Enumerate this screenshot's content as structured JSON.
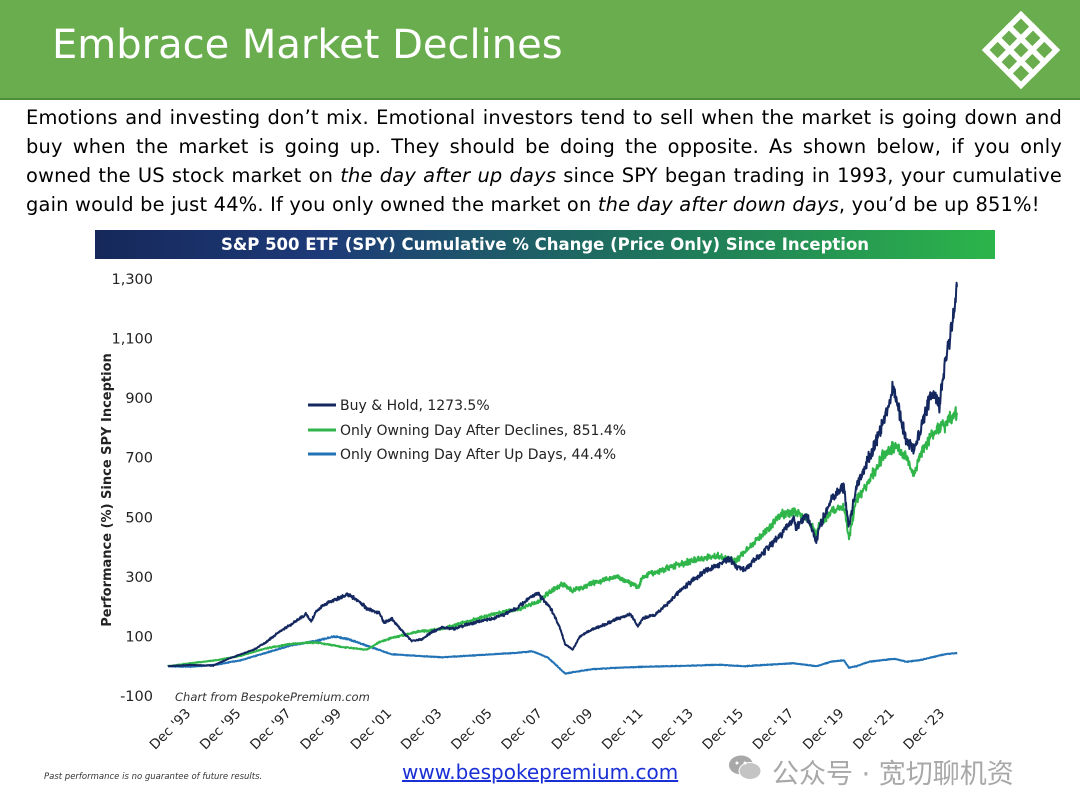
{
  "header": {
    "title": "Embrace Market Declines",
    "background_color": "#6aad4e",
    "logo_icon": "bespoke-lattice-logo-icon"
  },
  "intro": {
    "part1": "Emotions and investing don’t mix.  Emotional investors tend to sell when the market is going down and buy when the market is going up.  They should be doing the opposite.  As shown below, if you only owned the US stock market on ",
    "em1": "the day after up days",
    "part2": " since SPY began trading in 1993, your cumulative gain would be just 44%.  If you only owned the market on ",
    "em2": "the day after down days",
    "part3": ", you’d be up 851%!"
  },
  "chart_data": {
    "type": "line",
    "title": "S&P 500 ETF (SPY) Cumulative % Change (Price Only) Since Inception",
    "ylabel": "Performance (%) Since SPY Inception",
    "xlabel": "",
    "ylim": [
      -100,
      1300
    ],
    "yticks": [
      -100,
      100,
      300,
      500,
      700,
      900,
      1100,
      1300
    ],
    "ytick_labels": [
      "-100",
      "100",
      "300",
      "500",
      "700",
      "900",
      "1,100",
      "1,300"
    ],
    "xlim": [
      1993.1,
      2024.5
    ],
    "xticks": [
      1993.95,
      1995.95,
      1997.95,
      1999.95,
      2001.95,
      2003.95,
      2005.95,
      2007.95,
      2009.95,
      2011.95,
      2013.95,
      2015.95,
      2017.95,
      2019.95,
      2021.95,
      2023.95
    ],
    "xtick_labels": [
      "Dec '93",
      "Dec '95",
      "Dec '97",
      "Dec '99",
      "Dec '01",
      "Dec '03",
      "Dec '05",
      "Dec '07",
      "Dec '09",
      "Dec '11",
      "Dec '13",
      "Dec '15",
      "Dec '17",
      "Dec '19",
      "Dec '21",
      "Dec '23"
    ],
    "grid": false,
    "legend_position": "upper-left",
    "credit": "Chart from BespokePremium.com",
    "series": [
      {
        "name": "Buy & Hold, 1273.5%",
        "color": "#14285f",
        "x": [
          1993.1,
          1994.0,
          1994.9,
          1995.5,
          1996.0,
          1996.5,
          1997.0,
          1997.5,
          1998.0,
          1998.6,
          1998.8,
          1999.0,
          1999.5,
          2000.0,
          2000.2,
          2000.7,
          2001.0,
          2001.5,
          2001.7,
          2002.0,
          2002.5,
          2002.8,
          2003.2,
          2003.6,
          2004.0,
          2004.5,
          2005.0,
          2005.5,
          2006.0,
          2006.5,
          2007.0,
          2007.5,
          2007.8,
          2008.3,
          2008.7,
          2008.9,
          2009.2,
          2009.5,
          2010.0,
          2010.5,
          2011.0,
          2011.5,
          2011.8,
          2012.0,
          2012.5,
          2013.0,
          2013.5,
          2014.0,
          2014.5,
          2015.0,
          2015.5,
          2015.7,
          2016.1,
          2016.5,
          2017.0,
          2017.5,
          2018.0,
          2018.1,
          2018.5,
          2018.9,
          2019.0,
          2019.5,
          2020.0,
          2020.2,
          2020.5,
          2021.0,
          2021.5,
          2021.98,
          2022.3,
          2022.5,
          2022.8,
          2023.0,
          2023.5,
          2023.8,
          2024.0,
          2024.3,
          2024.5
        ],
        "y": [
          0,
          4,
          2,
          25,
          40,
          55,
          80,
          115,
          140,
          175,
          150,
          185,
          215,
          230,
          240,
          220,
          195,
          180,
          145,
          160,
          110,
          85,
          90,
          115,
          130,
          125,
          140,
          150,
          160,
          175,
          195,
          230,
          245,
          200,
          130,
          75,
          55,
          100,
          125,
          140,
          160,
          175,
          135,
          160,
          175,
          210,
          255,
          290,
          320,
          340,
          360,
          335,
          325,
          360,
          400,
          440,
          500,
          460,
          510,
          420,
          460,
          560,
          600,
          470,
          600,
          700,
          800,
          940,
          820,
          760,
          730,
          780,
          920,
          880,
          1000,
          1140,
          1273.5
        ]
      },
      {
        "name": "Only Owning Day After Declines, 851.4%",
        "color": "#2fb54a",
        "x": [
          1993.1,
          1994.0,
          1995.0,
          1996.0,
          1997.0,
          1998.0,
          1999.0,
          2000.0,
          2000.5,
          2001.0,
          2001.5,
          2002.0,
          2002.5,
          2003.0,
          2003.5,
          2004.0,
          2005.0,
          2006.0,
          2007.0,
          2007.8,
          2008.3,
          2008.8,
          2009.2,
          2009.6,
          2010.0,
          2011.0,
          2011.8,
          2012.0,
          2013.0,
          2014.0,
          2015.0,
          2015.7,
          2016.1,
          2016.5,
          2017.0,
          2017.5,
          2018.0,
          2018.5,
          2018.9,
          2019.0,
          2019.5,
          2020.0,
          2020.2,
          2020.5,
          2021.0,
          2021.5,
          2022.0,
          2022.5,
          2022.8,
          2023.0,
          2023.5,
          2024.0,
          2024.5
        ],
        "y": [
          0,
          10,
          20,
          35,
          60,
          75,
          80,
          65,
          60,
          55,
          80,
          95,
          105,
          115,
          120,
          125,
          150,
          175,
          190,
          215,
          250,
          275,
          255,
          265,
          280,
          300,
          265,
          300,
          330,
          355,
          370,
          355,
          390,
          420,
          460,
          510,
          520,
          500,
          440,
          470,
          520,
          540,
          430,
          560,
          620,
          700,
          740,
          700,
          640,
          700,
          780,
          810,
          851.4
        ]
      },
      {
        "name": "Only Owning Day After Up Days, 44.4%",
        "color": "#2272b6",
        "x": [
          1993.1,
          1994.0,
          1995.0,
          1996.0,
          1997.0,
          1998.0,
          1999.0,
          1999.7,
          2000.3,
          2000.8,
          2001.5,
          2002.0,
          2003.0,
          2004.0,
          2005.0,
          2006.0,
          2007.0,
          2007.6,
          2008.2,
          2008.6,
          2008.9,
          2009.2,
          2010.0,
          2011.0,
          2012.0,
          2013.0,
          2014.0,
          2015.0,
          2016.0,
          2017.0,
          2018.0,
          2018.9,
          2019.5,
          2020.0,
          2020.2,
          2020.5,
          2021.0,
          2021.5,
          2022.0,
          2022.5,
          2023.0,
          2023.5,
          2024.0,
          2024.5
        ],
        "y": [
          0,
          -2,
          5,
          20,
          45,
          70,
          85,
          100,
          90,
          75,
          55,
          40,
          35,
          30,
          35,
          40,
          45,
          50,
          30,
          0,
          -25,
          -20,
          -10,
          -5,
          -2,
          0,
          2,
          5,
          0,
          5,
          10,
          0,
          15,
          20,
          -5,
          0,
          15,
          20,
          25,
          15,
          20,
          30,
          40,
          44.4
        ]
      }
    ]
  },
  "footer": {
    "disclaimer": "Past performance is no guarantee of future results.",
    "url": "www.bespokepremium.com"
  },
  "watermark": {
    "icon": "wechat-icon",
    "text": "公众号 · 宽切聊机资"
  }
}
